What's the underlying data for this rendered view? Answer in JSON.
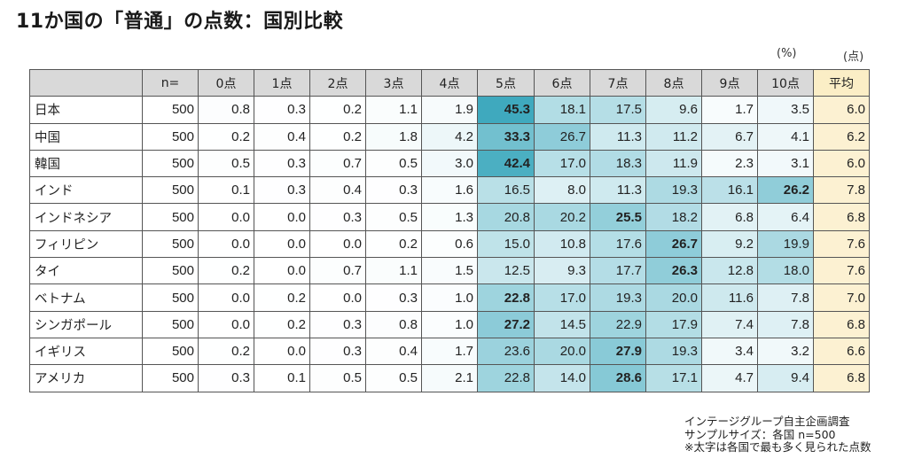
{
  "title": "11か国の「普通」の点数：国別比較",
  "unit_percent": "(%)",
  "unit_points": "(点)",
  "footnotes": [
    "インテージグループ自主企画調査",
    "サンプルサイズ：各国 n=500",
    "※太字は各国で最も多く見られた点数"
  ],
  "colors": {
    "header_bg": "#d9d9d9",
    "avg_bg": "#fcf1d2",
    "heat_low": "#ffffff",
    "heat_high": "#3fa9be",
    "border": "#555555"
  },
  "chart_data": {
    "type": "table",
    "title": "11か国の「普通」の点数：国別比較",
    "columns": [
      "",
      "n=",
      "0点",
      "1点",
      "2点",
      "3点",
      "4点",
      "5点",
      "6点",
      "7点",
      "8点",
      "9点",
      "10点",
      "平均"
    ],
    "rows": [
      {
        "country": "日本",
        "n": "500",
        "values": [
          "0.8",
          "0.3",
          "0.2",
          "1.1",
          "1.9",
          "45.3",
          "18.1",
          "17.5",
          "9.6",
          "1.7",
          "3.5"
        ],
        "avg": "6.0",
        "bold_index": 5
      },
      {
        "country": "中国",
        "n": "500",
        "values": [
          "0.2",
          "0.4",
          "0.2",
          "1.8",
          "4.2",
          "33.3",
          "26.7",
          "11.3",
          "11.2",
          "6.7",
          "4.1"
        ],
        "avg": "6.2",
        "bold_index": 5
      },
      {
        "country": "韓国",
        "n": "500",
        "values": [
          "0.5",
          "0.3",
          "0.7",
          "0.5",
          "3.0",
          "42.4",
          "17.0",
          "18.3",
          "11.9",
          "2.3",
          "3.1"
        ],
        "avg": "6.0",
        "bold_index": 5
      },
      {
        "country": "インド",
        "n": "500",
        "values": [
          "0.1",
          "0.3",
          "0.4",
          "0.3",
          "1.6",
          "16.5",
          "8.0",
          "11.3",
          "19.3",
          "16.1",
          "26.2"
        ],
        "avg": "7.8",
        "bold_index": 10
      },
      {
        "country": "インドネシア",
        "n": "500",
        "values": [
          "0.0",
          "0.0",
          "0.3",
          "0.5",
          "1.3",
          "20.8",
          "20.2",
          "25.5",
          "18.2",
          "6.8",
          "6.4"
        ],
        "avg": "6.8",
        "bold_index": 7
      },
      {
        "country": "フィリピン",
        "n": "500",
        "values": [
          "0.0",
          "0.0",
          "0.0",
          "0.2",
          "0.6",
          "15.0",
          "10.8",
          "17.6",
          "26.7",
          "9.2",
          "19.9"
        ],
        "avg": "7.6",
        "bold_index": 8
      },
      {
        "country": "タイ",
        "n": "500",
        "values": [
          "0.2",
          "0.0",
          "0.7",
          "1.1",
          "1.5",
          "12.5",
          "9.3",
          "17.7",
          "26.3",
          "12.8",
          "18.0"
        ],
        "avg": "7.6",
        "bold_index": 8
      },
      {
        "country": "ベトナム",
        "n": "500",
        "values": [
          "0.0",
          "0.2",
          "0.0",
          "0.3",
          "1.0",
          "22.8",
          "17.0",
          "19.3",
          "20.0",
          "11.6",
          "7.8"
        ],
        "avg": "7.0",
        "bold_index": 5
      },
      {
        "country": "シンガポール",
        "n": "500",
        "values": [
          "0.0",
          "0.2",
          "0.3",
          "0.8",
          "1.0",
          "27.2",
          "14.5",
          "22.9",
          "17.9",
          "7.4",
          "7.8"
        ],
        "avg": "6.8",
        "bold_index": 5
      },
      {
        "country": "イギリス",
        "n": "500",
        "values": [
          "0.2",
          "0.0",
          "0.3",
          "0.4",
          "1.7",
          "23.6",
          "20.0",
          "27.9",
          "19.3",
          "3.4",
          "3.2"
        ],
        "avg": "6.6",
        "bold_index": 7
      },
      {
        "country": "アメリカ",
        "n": "500",
        "values": [
          "0.3",
          "0.1",
          "0.5",
          "0.5",
          "2.1",
          "22.8",
          "14.0",
          "28.6",
          "17.1",
          "4.7",
          "9.4"
        ],
        "avg": "6.8",
        "bold_index": 7
      }
    ]
  }
}
